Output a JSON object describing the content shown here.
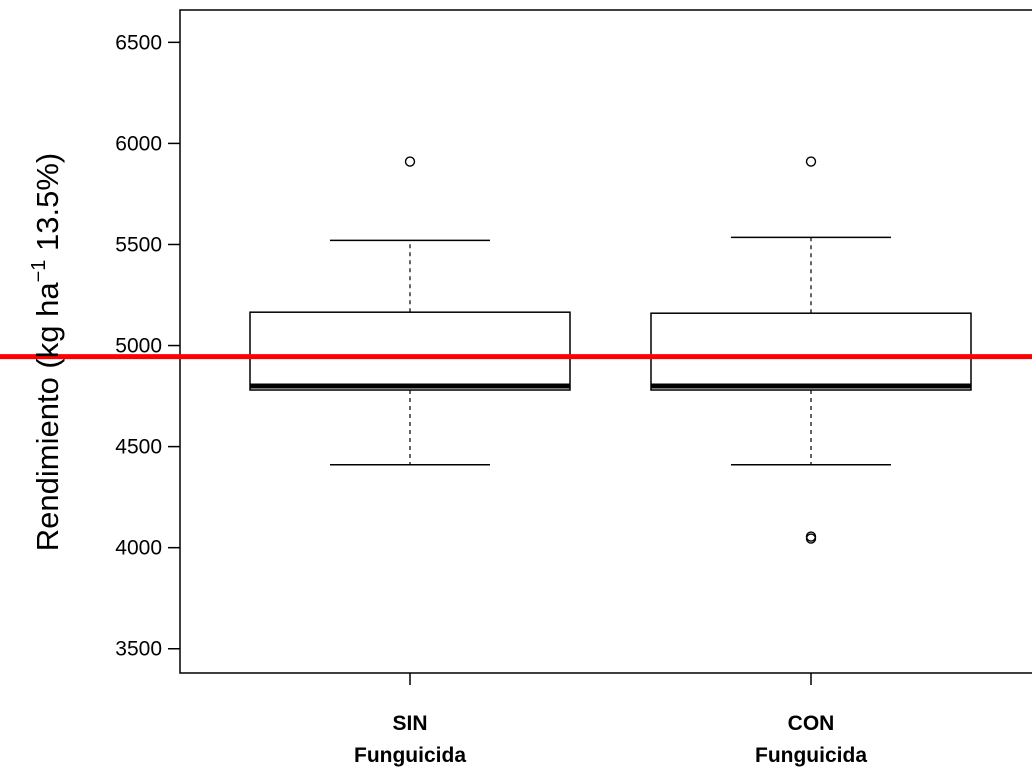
{
  "chart_data": {
    "type": "boxplot",
    "ylabel": {
      "main": "Rendimiento (kg ha",
      "sup": "−1",
      "tail": " 13.5%)"
    },
    "ylim": [
      3380,
      6660
    ],
    "yticks": [
      3500,
      4000,
      4500,
      5000,
      5500,
      6000,
      6500
    ],
    "ytick_labels": [
      "3500",
      "4000",
      "4500",
      "5000",
      "5500",
      "6000",
      "6500"
    ],
    "grid": false,
    "categories": [
      {
        "line1": "SIN",
        "line2": "Funguicida"
      },
      {
        "line1": "CON",
        "line2": "Funguicida"
      }
    ],
    "boxes": [
      {
        "whisker_low": 4410,
        "q1": 4780,
        "median": 4800,
        "q3": 5165,
        "whisker_high": 5520,
        "outliers": [
          5910
        ]
      },
      {
        "whisker_low": 4410,
        "q1": 4780,
        "median": 4800,
        "q3": 5160,
        "whisker_high": 5535,
        "outliers": [
          5910,
          4055,
          4045
        ]
      }
    ],
    "reference_line": {
      "value": 4945,
      "color": "#ff0000"
    }
  }
}
